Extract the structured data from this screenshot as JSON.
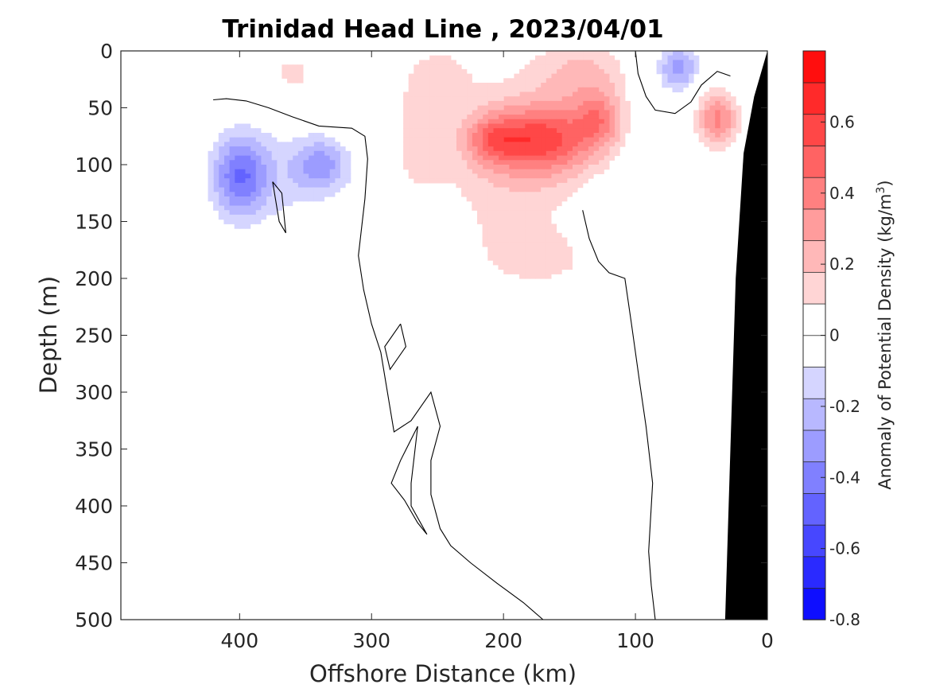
{
  "chart_data": {
    "type": "heatmap",
    "title": "Trinidad Head Line , 2023/04/01",
    "xlabel": "Offshore Distance (km)",
    "ylabel": "Depth (m)",
    "xlim": [
      490,
      0
    ],
    "x_reversed": true,
    "ylim": [
      0,
      500
    ],
    "y_reversed": true,
    "x_ticks": [
      400,
      300,
      200,
      100,
      0
    ],
    "y_ticks": [
      0,
      50,
      100,
      150,
      200,
      250,
      300,
      350,
      400,
      450,
      500
    ],
    "colorbar": {
      "label_main": "Anomaly of Potential Density (kg/m",
      "label_sup": "3",
      "label_close": ")",
      "ticks": [
        -0.8,
        -0.6,
        -0.4,
        -0.2,
        0,
        0.2,
        0.4,
        0.6
      ],
      "tick_labels": [
        "-0.8",
        "-0.6",
        "-0.4",
        "-0.2",
        "0",
        "0.2",
        "0.4",
        "0.6"
      ],
      "range": [
        -0.8,
        0.8
      ],
      "levels": 18,
      "colormap": "blue-white-red"
    },
    "colors": {
      "bathymetry": "#000000",
      "positive_max": "#ff0000",
      "negative_max": "#0000ff",
      "zero_contour": "#000000"
    },
    "grid": false,
    "anomaly_features": [
      {
        "kind": "positive",
        "x_km": 195,
        "depth_m": 100,
        "sx_km": 55,
        "sy_m": 90,
        "value": 0.15
      },
      {
        "kind": "positive",
        "x_km": 168,
        "depth_m": 78,
        "sx_km": 38,
        "sy_m": 30,
        "value": 0.48
      },
      {
        "kind": "positive",
        "x_km": 208,
        "depth_m": 78,
        "sx_km": 22,
        "sy_m": 22,
        "value": 0.28
      },
      {
        "kind": "positive",
        "x_km": 128,
        "depth_m": 60,
        "sx_km": 18,
        "sy_m": 25,
        "value": 0.3
      },
      {
        "kind": "positive",
        "x_km": 140,
        "depth_m": 20,
        "sx_km": 35,
        "sy_m": 30,
        "value": 0.18
      },
      {
        "kind": "positive",
        "x_km": 265,
        "depth_m": 80,
        "sx_km": 22,
        "sy_m": 50,
        "value": 0.12
      },
      {
        "kind": "positive",
        "x_km": 165,
        "depth_m": 185,
        "sx_km": 55,
        "sy_m": 30,
        "value": 0.08
      },
      {
        "kind": "positive",
        "x_km": 38,
        "depth_m": 60,
        "sx_km": 15,
        "sy_m": 25,
        "value": 0.38
      },
      {
        "kind": "positive",
        "x_km": 360,
        "depth_m": 20,
        "sx_km": 25,
        "sy_m": 20,
        "value": 0.12
      },
      {
        "kind": "positive",
        "x_km": 250,
        "depth_m": 25,
        "sx_km": 25,
        "sy_m": 30,
        "value": 0.12
      },
      {
        "kind": "negative",
        "x_km": 400,
        "depth_m": 110,
        "sx_km": 20,
        "sy_m": 35,
        "value": -0.4
      },
      {
        "kind": "negative",
        "x_km": 338,
        "depth_m": 100,
        "sx_km": 20,
        "sy_m": 22,
        "value": -0.25
      },
      {
        "kind": "negative",
        "x_km": 365,
        "depth_m": 110,
        "sx_km": 45,
        "sy_m": 45,
        "value": -0.12
      },
      {
        "kind": "negative",
        "x_km": 68,
        "depth_m": 15,
        "sx_km": 15,
        "sy_m": 20,
        "value": -0.3
      }
    ],
    "zero_contours": [
      [
        [
          420,
          43
        ],
        [
          410,
          42
        ],
        [
          395,
          44
        ],
        [
          378,
          50
        ],
        [
          360,
          58
        ],
        [
          340,
          66
        ],
        [
          315,
          68
        ],
        [
          305,
          75
        ],
        [
          303,
          95
        ],
        [
          305,
          130
        ],
        [
          310,
          180
        ],
        [
          306,
          210
        ],
        [
          300,
          240
        ],
        [
          293,
          265
        ],
        [
          288,
          300
        ],
        [
          283,
          335
        ],
        [
          270,
          325
        ],
        [
          255,
          300
        ],
        [
          248,
          330
        ],
        [
          255,
          360
        ],
        [
          255,
          390
        ],
        [
          248,
          420
        ],
        [
          240,
          435
        ],
        [
          225,
          450
        ],
        [
          205,
          468
        ],
        [
          185,
          485
        ],
        [
          170,
          500
        ]
      ],
      [
        [
          375,
          115
        ],
        [
          370,
          150
        ],
        [
          365,
          160
        ],
        [
          368,
          125
        ],
        [
          375,
          115
        ]
      ],
      [
        [
          278,
          240
        ],
        [
          290,
          260
        ],
        [
          286,
          280
        ],
        [
          274,
          260
        ],
        [
          278,
          240
        ]
      ],
      [
        [
          265,
          330
        ],
        [
          278,
          360
        ],
        [
          285,
          380
        ],
        [
          275,
          395
        ],
        [
          265,
          415
        ],
        [
          258,
          425
        ],
        [
          270,
          400
        ],
        [
          270,
          380
        ],
        [
          265,
          330
        ]
      ],
      [
        [
          85,
          500
        ],
        [
          88,
          470
        ],
        [
          90,
          440
        ],
        [
          87,
          380
        ],
        [
          92,
          330
        ],
        [
          97,
          290
        ],
        [
          103,
          240
        ],
        [
          108,
          200
        ],
        [
          120,
          195
        ],
        [
          128,
          185
        ],
        [
          135,
          165
        ],
        [
          140,
          140
        ]
      ],
      [
        [
          100,
          0
        ],
        [
          98,
          20
        ],
        [
          92,
          40
        ],
        [
          85,
          52
        ],
        [
          70,
          55
        ],
        [
          58,
          45
        ],
        [
          50,
          30
        ],
        [
          38,
          18
        ],
        [
          28,
          22
        ]
      ]
    ],
    "bathymetry_polygon": [
      [
        0,
        0
      ],
      [
        10,
        40
      ],
      [
        18,
        90
      ],
      [
        24,
        200
      ],
      [
        28,
        350
      ],
      [
        32,
        500
      ],
      [
        0,
        500
      ]
    ]
  }
}
